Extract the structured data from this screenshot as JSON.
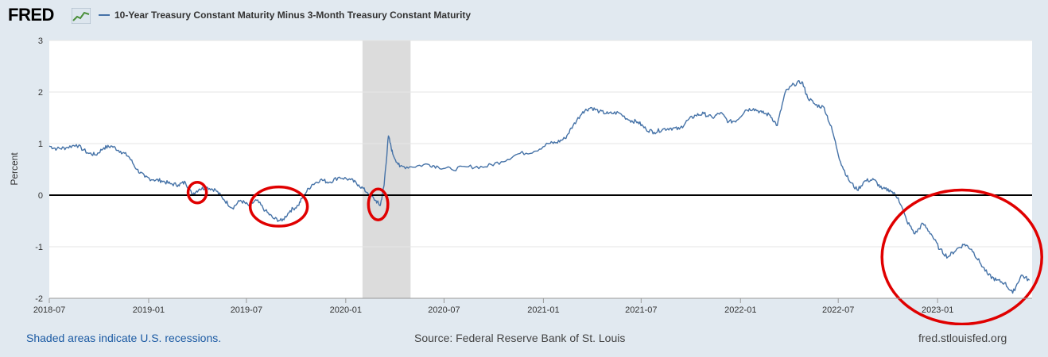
{
  "header": {
    "logo_text": "FRED",
    "logo_icon": "trend-chart-icon",
    "legend_label": "10-Year Treasury Constant Maturity Minus 3-Month Treasury Constant Maturity"
  },
  "footer": {
    "recession_note": "Shaded areas indicate U.S. recessions.",
    "source": "Source: Federal Reserve Bank of St. Louis",
    "site": "fred.stlouisfed.org"
  },
  "colors": {
    "series": "#4572a7",
    "annotation": "#e00000",
    "recession": "#dcdcdc",
    "background": "#e1e9f0"
  },
  "chart_data": {
    "type": "line",
    "title": "",
    "xlabel": "",
    "ylabel": "Percent",
    "ylim": [
      -2,
      3
    ],
    "xlim": [
      "2018-07-01",
      "2023-06-25"
    ],
    "yticks": [
      "3",
      "2",
      "1",
      "0",
      "-1",
      "-2"
    ],
    "xticks": [
      "2018-07",
      "2019-01",
      "2019-07",
      "2020-01",
      "2020-07",
      "2021-01",
      "2021-07",
      "2022-01",
      "2022-07",
      "2023-01"
    ],
    "grid": true,
    "zero_line": true,
    "recessions": [
      [
        "2020-02-01",
        "2020-04-30"
      ]
    ],
    "series": [
      {
        "name": "10-Year Treasury Constant Maturity Minus 3-Month Treasury Constant Maturity",
        "points": [
          [
            "2018-07-01",
            0.95
          ],
          [
            "2018-07-15",
            0.9
          ],
          [
            "2018-08-01",
            0.92
          ],
          [
            "2018-08-20",
            0.98
          ],
          [
            "2018-09-10",
            0.82
          ],
          [
            "2018-09-25",
            0.78
          ],
          [
            "2018-10-10",
            0.92
          ],
          [
            "2018-10-25",
            0.95
          ],
          [
            "2018-11-10",
            0.85
          ],
          [
            "2018-11-25",
            0.75
          ],
          [
            "2018-12-10",
            0.5
          ],
          [
            "2018-12-25",
            0.35
          ],
          [
            "2019-01-10",
            0.3
          ],
          [
            "2019-01-25",
            0.28
          ],
          [
            "2019-02-10",
            0.22
          ],
          [
            "2019-02-25",
            0.2
          ],
          [
            "2019-03-10",
            0.25
          ],
          [
            "2019-03-22",
            0.02
          ],
          [
            "2019-04-05",
            0.12
          ],
          [
            "2019-04-20",
            0.15
          ],
          [
            "2019-05-05",
            0.1
          ],
          [
            "2019-05-20",
            -0.08
          ],
          [
            "2019-06-05",
            -0.25
          ],
          [
            "2019-06-20",
            -0.1
          ],
          [
            "2019-07-05",
            -0.2
          ],
          [
            "2019-07-20",
            -0.1
          ],
          [
            "2019-08-05",
            -0.3
          ],
          [
            "2019-08-20",
            -0.45
          ],
          [
            "2019-09-05",
            -0.5
          ],
          [
            "2019-09-20",
            -0.3
          ],
          [
            "2019-10-05",
            -0.2
          ],
          [
            "2019-10-15",
            0.0
          ],
          [
            "2019-10-30",
            0.2
          ],
          [
            "2019-11-15",
            0.3
          ],
          [
            "2019-12-01",
            0.25
          ],
          [
            "2019-12-20",
            0.35
          ],
          [
            "2020-01-10",
            0.3
          ],
          [
            "2020-01-25",
            0.2
          ],
          [
            "2020-02-10",
            0.05
          ],
          [
            "2020-02-25",
            -0.1
          ],
          [
            "2020-03-05",
            -0.2
          ],
          [
            "2020-03-12",
            0.2
          ],
          [
            "2020-03-20",
            1.15
          ],
          [
            "2020-03-28",
            0.8
          ],
          [
            "2020-04-10",
            0.55
          ],
          [
            "2020-05-01",
            0.55
          ],
          [
            "2020-06-01",
            0.6
          ],
          [
            "2020-06-20",
            0.55
          ],
          [
            "2020-07-15",
            0.5
          ],
          [
            "2020-08-15",
            0.55
          ],
          [
            "2020-09-15",
            0.55
          ],
          [
            "2020-10-15",
            0.65
          ],
          [
            "2020-11-15",
            0.8
          ],
          [
            "2020-12-15",
            0.85
          ],
          [
            "2021-01-10",
            1.0
          ],
          [
            "2021-01-25",
            1.02
          ],
          [
            "2021-02-10",
            1.1
          ],
          [
            "2021-02-25",
            1.35
          ],
          [
            "2021-03-15",
            1.62
          ],
          [
            "2021-03-30",
            1.7
          ],
          [
            "2021-04-15",
            1.62
          ],
          [
            "2021-05-01",
            1.58
          ],
          [
            "2021-05-20",
            1.6
          ],
          [
            "2021-06-10",
            1.45
          ],
          [
            "2021-06-25",
            1.42
          ],
          [
            "2021-07-10",
            1.28
          ],
          [
            "2021-07-25",
            1.22
          ],
          [
            "2021-08-10",
            1.28
          ],
          [
            "2021-08-25",
            1.3
          ],
          [
            "2021-09-10",
            1.28
          ],
          [
            "2021-09-25",
            1.45
          ],
          [
            "2021-10-10",
            1.55
          ],
          [
            "2021-10-25",
            1.58
          ],
          [
            "2021-11-10",
            1.5
          ],
          [
            "2021-11-25",
            1.6
          ],
          [
            "2021-12-10",
            1.42
          ],
          [
            "2021-12-25",
            1.45
          ],
          [
            "2022-01-10",
            1.65
          ],
          [
            "2022-01-25",
            1.68
          ],
          [
            "2022-02-10",
            1.6
          ],
          [
            "2022-02-25",
            1.55
          ],
          [
            "2022-03-10",
            1.35
          ],
          [
            "2022-03-25",
            2.0
          ],
          [
            "2022-04-10",
            2.15
          ],
          [
            "2022-04-25",
            2.2
          ],
          [
            "2022-05-05",
            1.9
          ],
          [
            "2022-05-20",
            1.75
          ],
          [
            "2022-06-05",
            1.7
          ],
          [
            "2022-06-20",
            1.25
          ],
          [
            "2022-07-05",
            0.65
          ],
          [
            "2022-07-20",
            0.3
          ],
          [
            "2022-08-05",
            0.1
          ],
          [
            "2022-08-20",
            0.28
          ],
          [
            "2022-09-05",
            0.3
          ],
          [
            "2022-09-20",
            0.12
          ],
          [
            "2022-10-05",
            0.1
          ],
          [
            "2022-10-20",
            -0.05
          ],
          [
            "2022-11-05",
            -0.5
          ],
          [
            "2022-11-20",
            -0.75
          ],
          [
            "2022-12-05",
            -0.55
          ],
          [
            "2022-12-20",
            -0.75
          ],
          [
            "2023-01-05",
            -1.05
          ],
          [
            "2023-01-20",
            -1.2
          ],
          [
            "2023-02-05",
            -1.05
          ],
          [
            "2023-02-20",
            -0.95
          ],
          [
            "2023-03-05",
            -1.05
          ],
          [
            "2023-03-20",
            -1.3
          ],
          [
            "2023-04-05",
            -1.55
          ],
          [
            "2023-04-20",
            -1.65
          ],
          [
            "2023-05-05",
            -1.7
          ],
          [
            "2023-05-20",
            -1.9
          ],
          [
            "2023-06-05",
            -1.55
          ],
          [
            "2023-06-20",
            -1.65
          ]
        ]
      }
    ],
    "annotations": [
      {
        "type": "ellipse",
        "x_center": "2019-04-01",
        "y_center": 0.05,
        "x_radius_days": 17,
        "y_radius": 0.2
      },
      {
        "type": "ellipse",
        "x_center": "2019-08-30",
        "y_center": -0.22,
        "x_radius_days": 53,
        "y_radius": 0.38
      },
      {
        "type": "ellipse",
        "x_center": "2020-03-01",
        "y_center": -0.18,
        "x_radius_days": 18,
        "y_radius": 0.3
      },
      {
        "type": "ellipse",
        "x_center": "2023-02-15",
        "y_center": -1.2,
        "x_radius_days": 148,
        "y_radius": 1.3
      }
    ]
  }
}
